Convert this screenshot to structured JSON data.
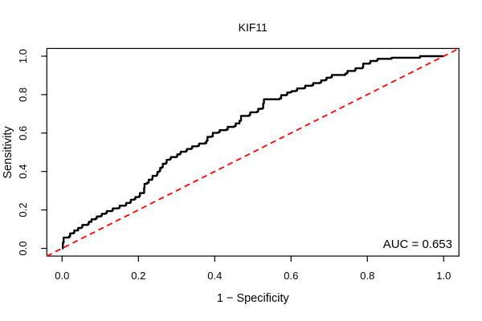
{
  "chart_data": {
    "type": "line",
    "title": "KIF11",
    "xlabel": "1 − Specificity",
    "ylabel": "Sensitivity",
    "xlim": [
      0,
      1
    ],
    "ylim": [
      0,
      1
    ],
    "x_ticks": [
      0.0,
      0.2,
      0.4,
      0.6,
      0.8,
      1.0
    ],
    "y_ticks": [
      0.0,
      0.2,
      0.4,
      0.6,
      0.8,
      1.0
    ],
    "grid": false,
    "legend_position": "none",
    "auc_value": 0.653,
    "annotations": [
      {
        "text": "AUC = 0.653",
        "x": 1.0,
        "y": 0.05,
        "align": "right"
      }
    ],
    "series": [
      {
        "name": "ROC curve",
        "color": "#000000",
        "style": "solid",
        "width": 2.4,
        "step": true,
        "extend_full_range": false,
        "points": [
          [
            0.0,
            0.0
          ],
          [
            0.002,
            0.03
          ],
          [
            0.004,
            0.056
          ],
          [
            0.018,
            0.062
          ],
          [
            0.021,
            0.078
          ],
          [
            0.03,
            0.082
          ],
          [
            0.032,
            0.093
          ],
          [
            0.042,
            0.106
          ],
          [
            0.051,
            0.11
          ],
          [
            0.053,
            0.122
          ],
          [
            0.068,
            0.127
          ],
          [
            0.07,
            0.138
          ],
          [
            0.077,
            0.151
          ],
          [
            0.088,
            0.156
          ],
          [
            0.091,
            0.166
          ],
          [
            0.101,
            0.169
          ],
          [
            0.104,
            0.18
          ],
          [
            0.114,
            0.183
          ],
          [
            0.117,
            0.194
          ],
          [
            0.131,
            0.197
          ],
          [
            0.133,
            0.208
          ],
          [
            0.148,
            0.211
          ],
          [
            0.151,
            0.222
          ],
          [
            0.166,
            0.225
          ],
          [
            0.168,
            0.236
          ],
          [
            0.178,
            0.239
          ],
          [
            0.18,
            0.253
          ],
          [
            0.189,
            0.256
          ],
          [
            0.192,
            0.267
          ],
          [
            0.202,
            0.272
          ],
          [
            0.204,
            0.288
          ],
          [
            0.215,
            0.315
          ],
          [
            0.216,
            0.336
          ],
          [
            0.223,
            0.342
          ],
          [
            0.227,
            0.357
          ],
          [
            0.236,
            0.363
          ],
          [
            0.237,
            0.377
          ],
          [
            0.248,
            0.384
          ],
          [
            0.25,
            0.398
          ],
          [
            0.255,
            0.403
          ],
          [
            0.257,
            0.419
          ],
          [
            0.262,
            0.424
          ],
          [
            0.264,
            0.44
          ],
          [
            0.272,
            0.445
          ],
          [
            0.274,
            0.461
          ],
          [
            0.283,
            0.466
          ],
          [
            0.285,
            0.475
          ],
          [
            0.3,
            0.479
          ],
          [
            0.302,
            0.489
          ],
          [
            0.309,
            0.493
          ],
          [
            0.311,
            0.503
          ],
          [
            0.325,
            0.508
          ],
          [
            0.327,
            0.517
          ],
          [
            0.339,
            0.521
          ],
          [
            0.341,
            0.531
          ],
          [
            0.356,
            0.534
          ],
          [
            0.359,
            0.545
          ],
          [
            0.374,
            0.548
          ],
          [
            0.378,
            0.559
          ],
          [
            0.381,
            0.58
          ],
          [
            0.392,
            0.583
          ],
          [
            0.395,
            0.601
          ],
          [
            0.409,
            0.604
          ],
          [
            0.413,
            0.615
          ],
          [
            0.43,
            0.618
          ],
          [
            0.434,
            0.632
          ],
          [
            0.451,
            0.636
          ],
          [
            0.455,
            0.65
          ],
          [
            0.465,
            0.664
          ],
          [
            0.469,
            0.689
          ],
          [
            0.49,
            0.694
          ],
          [
            0.493,
            0.708
          ],
          [
            0.511,
            0.712
          ],
          [
            0.514,
            0.726
          ],
          [
            0.525,
            0.73
          ],
          [
            0.527,
            0.755
          ],
          [
            0.529,
            0.776
          ],
          [
            0.57,
            0.78
          ],
          [
            0.574,
            0.797
          ],
          [
            0.588,
            0.8
          ],
          [
            0.59,
            0.811
          ],
          [
            0.599,
            0.814
          ],
          [
            0.602,
            0.818
          ],
          [
            0.613,
            0.821
          ],
          [
            0.616,
            0.832
          ],
          [
            0.634,
            0.835
          ],
          [
            0.637,
            0.846
          ],
          [
            0.655,
            0.849
          ],
          [
            0.658,
            0.86
          ],
          [
            0.676,
            0.863
          ],
          [
            0.679,
            0.874
          ],
          [
            0.69,
            0.877
          ],
          [
            0.693,
            0.888
          ],
          [
            0.704,
            0.891
          ],
          [
            0.707,
            0.902
          ],
          [
            0.742,
            0.909
          ],
          [
            0.746,
            0.913
          ],
          [
            0.748,
            0.923
          ],
          [
            0.767,
            0.927
          ],
          [
            0.769,
            0.937
          ],
          [
            0.787,
            0.941
          ],
          [
            0.789,
            0.961
          ],
          [
            0.806,
            0.965
          ],
          [
            0.808,
            0.975
          ],
          [
            0.825,
            0.979
          ],
          [
            0.827,
            0.986
          ],
          [
            0.862,
            0.988
          ],
          [
            0.864,
            0.992
          ],
          [
            0.938,
            1.0
          ],
          [
            1.0,
            1.0
          ]
        ]
      },
      {
        "name": "Chance diagonal",
        "color": "#FF0000",
        "style": "dashed",
        "width": 1.8,
        "step": false,
        "extend_full_range": true,
        "points": [
          [
            0.0,
            0.0
          ],
          [
            1.0,
            1.0
          ]
        ]
      }
    ]
  }
}
